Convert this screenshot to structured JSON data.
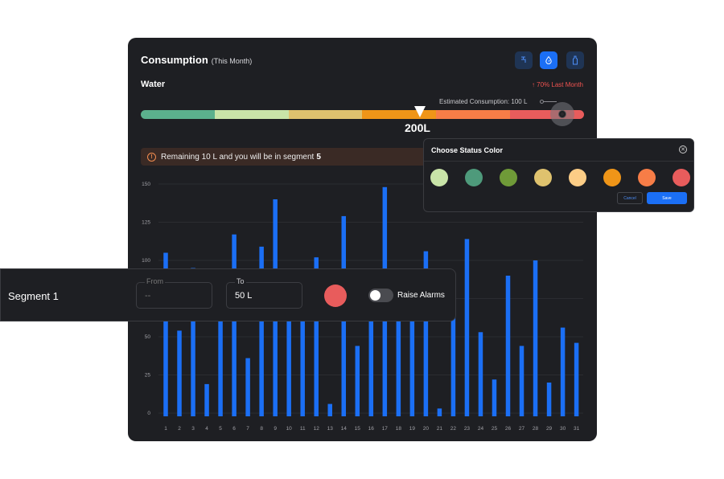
{
  "header": {
    "title": "Consumption",
    "subtitle": "(This Month)",
    "icons": [
      "tap-icon",
      "droplet-gauge-icon",
      "bottle-icon"
    ]
  },
  "meter": {
    "label": "Water",
    "trend": "↑ 70% Last Month",
    "estimate": "Estimated Consumption: 100 L",
    "marker_value": "200L",
    "segment_colors": [
      "#5bb08d",
      "#c9e4a8",
      "#dfc26e",
      "#ef9518",
      "#f77d47",
      "#e85c5c"
    ],
    "marker_fraction": 0.63,
    "knob_fraction": 0.96
  },
  "alert": {
    "text": "Remaining 10 L and you will be in segment",
    "segment": "5",
    "icon": "exclamation-circle-icon"
  },
  "chart_data": {
    "type": "bar",
    "categories": [
      "1",
      "2",
      "3",
      "4",
      "5",
      "6",
      "7",
      "8",
      "9",
      "10",
      "11",
      "12",
      "13",
      "14",
      "15",
      "16",
      "17",
      "18",
      "19",
      "20",
      "21",
      "22",
      "23",
      "24",
      "25",
      "26",
      "27",
      "28",
      "29",
      "30",
      "31"
    ],
    "values": [
      105,
      54,
      95,
      19,
      70,
      117,
      36,
      109,
      140,
      85,
      78,
      102,
      6,
      129,
      44,
      80,
      148,
      70,
      72,
      106,
      3,
      75,
      114,
      53,
      22,
      90,
      44,
      100,
      20,
      56,
      46
    ],
    "ylim": [
      0,
      150
    ],
    "yticks": [
      "150",
      "125",
      "100",
      "75",
      "50",
      "25",
      "0"
    ],
    "color": "#1b6ff5",
    "grid": true
  },
  "segment_panel": {
    "label": "Segment 1",
    "from_label": "From",
    "from_value": "--",
    "to_label": "To",
    "to_value": "50 L",
    "color": "#e85c5c",
    "alarm_label": "Raise Alarms",
    "alarm_on": false
  },
  "color_picker": {
    "title": "Choose Status Color",
    "swatches": [
      "#c9e4a8",
      "#4e9a7b",
      "#6f9a38",
      "#dfc26e",
      "#fccd86",
      "#ef9518",
      "#f77d47",
      "#e85c5c"
    ],
    "cancel_label": "Cancel",
    "save_label": "Save"
  }
}
